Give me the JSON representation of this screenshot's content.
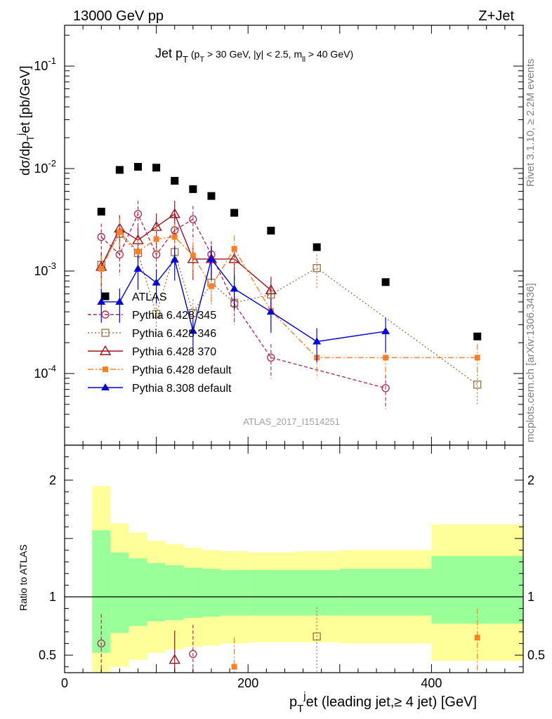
{
  "header": {
    "energy": "13000 GeV pp",
    "process": "Z+Jet",
    "plot_title": "Jet p_T (p_T > 30 GeV, |y| < 2.5, m_ll > 40 GeV)"
  },
  "side_labels": {
    "rivet": "Rivet 3.1.10, ≥ 2.2M events",
    "mcplots": "mcplots.cern.ch [arXiv:1306.3436]"
  },
  "watermark": "ATLAS_2017_I1514251",
  "chart_data": [
    {
      "type": "scatter",
      "title": "Jet p_T (p_T > 30 GeV, |y| < 2.5, m_ll > 40 GeV)",
      "ylabel": "dσ/dp_T^j et [pb/GeV]",
      "xlabel": "p_T^j et (leading jet,≥ 4 jet) [GeV]",
      "xlim": [
        0,
        500
      ],
      "ylim": [
        2e-05,
        0.25
      ],
      "yscale": "log",
      "y_tick_labels": [
        "10^-4",
        "10^-3",
        "10^-2",
        "10^-1"
      ],
      "legend_position": "center-left",
      "colors": {
        "ATLAS": "#000000",
        "Pythia 6.428 345": "#b03060",
        "Pythia 6.428 346": "#a0784a",
        "Pythia 6.428 370": "#a01020",
        "Pythia 6.428 default": "#ff7f24",
        "Pythia 8.308 default": "#0000e0"
      },
      "series": [
        {
          "name": "ATLAS",
          "style": "square",
          "x": [
            40,
            60,
            80,
            100,
            120,
            140,
            160,
            185,
            225,
            275,
            350,
            450
          ],
          "y": [
            0.0038,
            0.0097,
            0.0104,
            0.0102,
            0.0076,
            0.0063,
            0.0054,
            0.0037,
            0.00248,
            0.00171,
            0.00078,
            0.00023
          ]
        },
        {
          "name": "Pythia 6.428 345",
          "style": "open-circle-dashed",
          "x": [
            40,
            60,
            80,
            100,
            120,
            140,
            160,
            185,
            225,
            350
          ],
          "y": [
            0.00215,
            0.00145,
            0.0036,
            0.00145,
            0.0025,
            0.0032,
            0.00145,
            0.00048,
            0.000143,
            7.2e-05
          ]
        },
        {
          "name": "Pythia 6.428 346",
          "style": "open-square-dotted",
          "x": [
            40,
            60,
            80,
            100,
            120,
            140,
            160,
            185,
            225,
            275,
            450
          ],
          "y": [
            0.00115,
            0.0023,
            0.0015,
            0.00038,
            0.00153,
            0.00039,
            0.00077,
            0.00049,
            0.00059,
            0.00107,
            7.8e-05
          ]
        },
        {
          "name": "Pythia 6.428 370",
          "style": "open-triangle-solid",
          "x": [
            40,
            60,
            80,
            100,
            120,
            140,
            160,
            185,
            225
          ],
          "y": [
            0.0011,
            0.0026,
            0.002,
            0.0027,
            0.0036,
            0.00131,
            0.00131,
            0.00131,
            0.00065
          ]
        },
        {
          "name": "Pythia 6.428 default",
          "style": "filled-square-dashdot",
          "x": [
            40,
            60,
            80,
            100,
            120,
            140,
            160,
            185,
            225,
            275,
            350,
            450
          ],
          "y": [
            0.00105,
            0.0024,
            0.00155,
            0.00205,
            0.00215,
            0.00142,
            0.00071,
            0.00165,
            0.00041,
            0.000143,
            0.000143,
            0.000143
          ]
        },
        {
          "name": "Pythia 8.308 default",
          "style": "filled-triangle-solid",
          "x": [
            40,
            60,
            80,
            100,
            120,
            140,
            160,
            185,
            225,
            275,
            350
          ],
          "y": [
            0.0005,
            0.0005,
            0.00105,
            0.00077,
            0.00129,
            0.00026,
            0.00131,
            0.00067,
            0.0004,
            0.000205,
            0.000258
          ]
        }
      ]
    },
    {
      "type": "scatter",
      "ylabel": "Ratio to ATLAS",
      "xlabel": "p_T^j et (leading jet,≥ 4 jet) [GeV]",
      "xlim": [
        0,
        500
      ],
      "ylim": [
        0.35,
        2.3
      ],
      "x_tick_labels": [
        "0",
        "200",
        "400"
      ],
      "y_tick_labels": [
        "0.5",
        "1",
        "2"
      ],
      "bands": {
        "bin_edges": [
          30,
          50,
          70,
          90,
          110,
          130,
          150,
          170,
          200,
          250,
          300,
          400,
          500
        ],
        "yellow_upper": [
          1.95,
          1.63,
          1.55,
          1.48,
          1.45,
          1.42,
          1.4,
          1.39,
          1.38,
          1.39,
          1.4,
          1.62
        ],
        "yellow_lower": [
          0.34,
          0.4,
          0.46,
          0.52,
          0.55,
          0.57,
          0.58,
          0.6,
          0.61,
          0.61,
          0.6,
          0.45
        ],
        "green_upper": [
          1.57,
          1.38,
          1.33,
          1.29,
          1.27,
          1.25,
          1.24,
          1.23,
          1.23,
          1.23,
          1.24,
          1.35
        ],
        "green_lower": [
          0.52,
          0.69,
          0.75,
          0.79,
          0.8,
          0.82,
          0.83,
          0.84,
          0.84,
          0.84,
          0.84,
          0.77
        ]
      },
      "series": [
        {
          "name": "Pythia 6.428 345",
          "x": [
            40,
            140
          ],
          "y": [
            0.6,
            0.51
          ]
        },
        {
          "name": "Pythia 6.428 346",
          "x": [
            275
          ],
          "y": [
            0.66
          ]
        },
        {
          "name": "Pythia 6.428 370",
          "x": [
            120
          ],
          "y": [
            0.46
          ]
        },
        {
          "name": "Pythia 6.428 default",
          "x": [
            185,
            450
          ],
          "y": [
            0.4,
            0.65
          ]
        }
      ]
    }
  ]
}
